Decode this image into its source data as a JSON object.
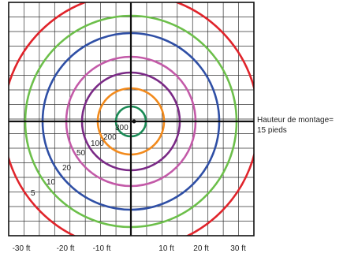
{
  "chart_data": {
    "type": "isolux-diagram",
    "rings": [
      {
        "label": "300",
        "color": "#1a8a55"
      },
      {
        "label": "200",
        "color": "#f28a1c"
      },
      {
        "label": "100",
        "color": "#7a2a86"
      },
      {
        "label": "50",
        "color": "#c35aa8"
      },
      {
        "label": "20",
        "color": "#2f4fa5"
      },
      {
        "label": "10",
        "color": "#6cbf4a"
      },
      {
        "label": "5",
        "color": "#e0242b"
      }
    ],
    "x_ticks": [
      "-30 ft",
      "-20 ft",
      "-10 ft",
      "10 ft",
      "20 ft",
      "30 ft"
    ],
    "annotation": "Hauteur de montage= 15 pieds"
  }
}
